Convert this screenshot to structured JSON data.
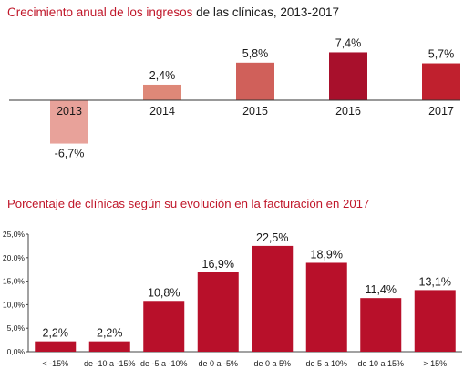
{
  "chart_data": [
    {
      "type": "bar",
      "title_highlight": "Crecimiento anual de los ingresos",
      "title_rest": " de las clínicas, 2013-2017",
      "categories": [
        "2013",
        "2014",
        "2015",
        "2016",
        "2017"
      ],
      "values": [
        -6.7,
        2.4,
        5.8,
        7.4,
        5.7
      ],
      "value_labels": [
        "-6,7%",
        "2,4%",
        "5,8%",
        "7,4%",
        "5,7%"
      ],
      "colors": [
        "#e8a29a",
        "#de8878",
        "#d0605a",
        "#a8102c",
        "#c0202e"
      ],
      "grid": false,
      "legend": "none"
    },
    {
      "type": "bar",
      "title": "Porcentaje de clínicas según su evolución en la facturación en 2017",
      "categories": [
        "< -15%",
        "de -10 a -15%",
        "de -5 a -10%",
        "de 0 a -5%",
        "de 0 a 5%",
        "de 5 a 10%",
        "de 10 a 15%",
        "> 15%"
      ],
      "values": [
        2.2,
        2.2,
        10.8,
        16.9,
        22.5,
        18.9,
        11.4,
        13.1
      ],
      "value_labels": [
        "2,2%",
        "2,2%",
        "10,8%",
        "16,9%",
        "22,5%",
        "18,9%",
        "11,4%",
        "13,1%"
      ],
      "ylim": [
        0,
        25
      ],
      "yticks": [
        "0,0%",
        "5,0%",
        "10,0%",
        "15,0%",
        "20,0%",
        "25,0%"
      ],
      "bar_color": "#b8102a",
      "grid": false,
      "legend": "none"
    }
  ]
}
